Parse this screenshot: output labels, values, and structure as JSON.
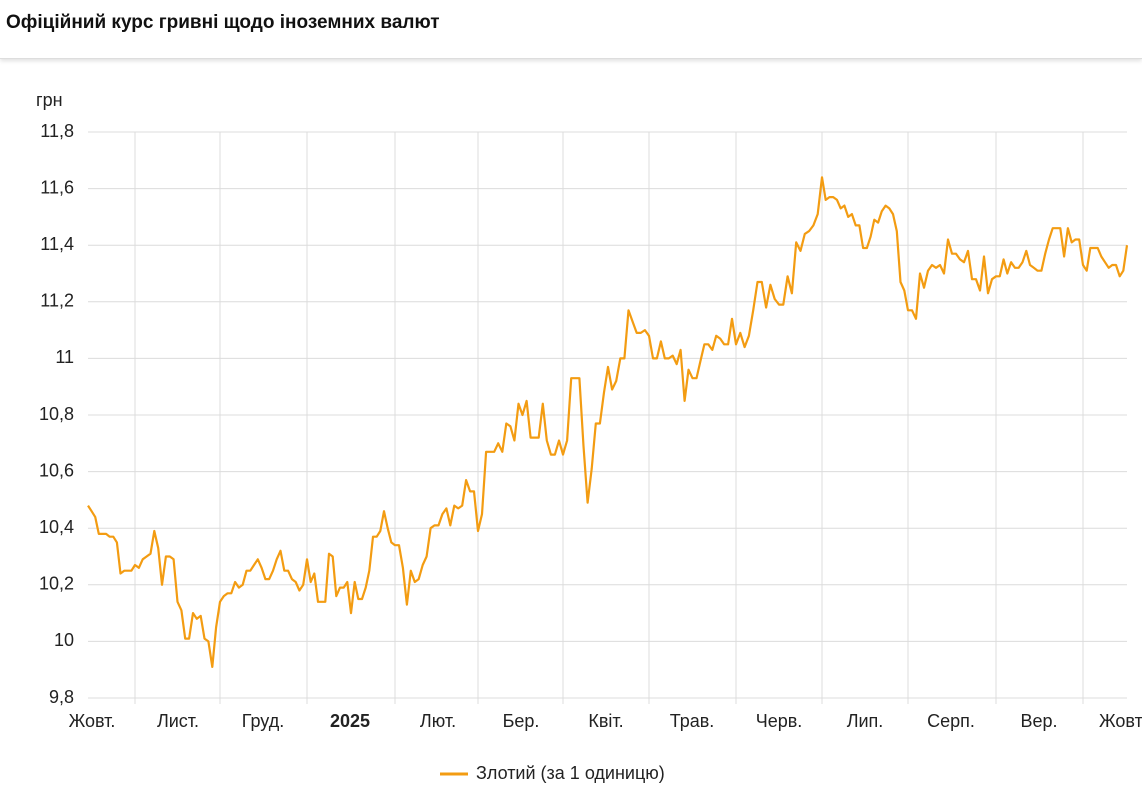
{
  "chart_data": {
    "type": "line",
    "title": "Офіційний курс гривні щодо іноземних валют",
    "y_label": "грн",
    "categories": [
      "Жовт.",
      "Лист.",
      "Груд.",
      "2025",
      "Лют.",
      "Бер.",
      "Квіт.",
      "Трав.",
      "Черв.",
      "Лип.",
      "Серп.",
      "Вер.",
      "Жовт."
    ],
    "ylim": [
      9.8,
      11.8
    ],
    "yticks": [
      {
        "value": 9.8,
        "label": "9,8"
      },
      10,
      {
        "value": 10.2,
        "label": "10,2"
      },
      {
        "value": 10.4,
        "label": "10,4"
      },
      {
        "value": 10.6,
        "label": "10,6"
      },
      {
        "value": 10.8,
        "label": "10,8"
      },
      11,
      {
        "value": 11.2,
        "label": "11,2"
      },
      {
        "value": 11.4,
        "label": "11,4"
      },
      {
        "value": 11.6,
        "label": "11,6"
      },
      {
        "value": 11.8,
        "label": "11,8"
      }
    ],
    "grid": true,
    "legend": "bottom",
    "series": [
      {
        "name": "Злотий (за 1 одиницю)",
        "color": "#f39c12",
        "values": [
          [
            10.48,
            10.46,
            10.44,
            10.38,
            10.38,
            10.38,
            10.37,
            10.37,
            10.35,
            10.24,
            10.25,
            10.25,
            10.25
          ],
          [
            10.27,
            10.26,
            10.29,
            10.3,
            10.31,
            10.39,
            10.33,
            10.2,
            10.3,
            10.3,
            10.29,
            10.14,
            10.11,
            10.01,
            10.01,
            10.1,
            10.08,
            10.09,
            10.01,
            10.0,
            9.91,
            10.05
          ],
          [
            10.14,
            10.16,
            10.17,
            10.17,
            10.21,
            10.19,
            10.2,
            10.25,
            10.25,
            10.27,
            10.29,
            10.26,
            10.22,
            10.22,
            10.25,
            10.29,
            10.32,
            10.25,
            10.25,
            10.22,
            10.21,
            10.18,
            10.2
          ],
          [
            10.29,
            10.21,
            10.24,
            10.14,
            10.14,
            10.14,
            10.31,
            10.3,
            10.16,
            10.19,
            10.19,
            10.21,
            10.1,
            10.21,
            10.15,
            10.15,
            10.19,
            10.25,
            10.37,
            10.37,
            10.39,
            10.46,
            10.4,
            10.35
          ],
          [
            10.34,
            10.34,
            10.26,
            10.13,
            10.25,
            10.21,
            10.22,
            10.27,
            10.3,
            10.4,
            10.41,
            10.41,
            10.45,
            10.47,
            10.41,
            10.48,
            10.47,
            10.48,
            10.57,
            10.53,
            10.53
          ],
          [
            10.39,
            10.45,
            10.67,
            10.67,
            10.67,
            10.7,
            10.67,
            10.77,
            10.76,
            10.71,
            10.84,
            10.8,
            10.85,
            10.72,
            10.72,
            10.72,
            10.84,
            10.71,
            10.66,
            10.66,
            10.71
          ],
          [
            10.66,
            10.71,
            10.93,
            10.93,
            10.93,
            10.69,
            10.49,
            10.61,
            10.77,
            10.77,
            10.88,
            10.97,
            10.89,
            10.92,
            11.0,
            11.0,
            11.17,
            11.13,
            11.09,
            11.09,
            11.1
          ],
          [
            11.08,
            11.0,
            11.0,
            11.06,
            11.0,
            11.0,
            11.01,
            10.98,
            11.03,
            10.85,
            10.96,
            10.93,
            10.93,
            10.99,
            11.05,
            11.05,
            11.03,
            11.08,
            11.07,
            11.05,
            11.05,
            11.14
          ],
          [
            11.05,
            11.09,
            11.04,
            11.08,
            11.17,
            11.27,
            11.27,
            11.18,
            11.26,
            11.21,
            11.19,
            11.19,
            11.29,
            11.23,
            11.41,
            11.38,
            11.44,
            11.45,
            11.47,
            11.51
          ],
          [
            11.64,
            11.56,
            11.57,
            11.57,
            11.56,
            11.53,
            11.54,
            11.5,
            11.51,
            11.47,
            11.47,
            11.39,
            11.39,
            11.43,
            11.49,
            11.48,
            11.52,
            11.54,
            11.53,
            11.51,
            11.45,
            11.27,
            11.24
          ],
          [
            11.17,
            11.17,
            11.14,
            11.3,
            11.25,
            11.31,
            11.33,
            11.32,
            11.33,
            11.3,
            11.42,
            11.37,
            11.37,
            11.35,
            11.34,
            11.38,
            11.28,
            11.28,
            11.24,
            11.36,
            11.23,
            11.28
          ],
          [
            11.29,
            11.29,
            11.35,
            11.3,
            11.34,
            11.32,
            11.32,
            11.34,
            11.38,
            11.33,
            11.32,
            11.31,
            11.31,
            11.37,
            11.42,
            11.46,
            11.46,
            11.46,
            11.36,
            11.46,
            11.41,
            11.42,
            11.42
          ],
          [
            11.33,
            11.31,
            11.39,
            11.39,
            11.39,
            11.36,
            11.34,
            11.32,
            11.33,
            11.33,
            11.29,
            11.31,
            11.4
          ]
        ]
      }
    ]
  }
}
